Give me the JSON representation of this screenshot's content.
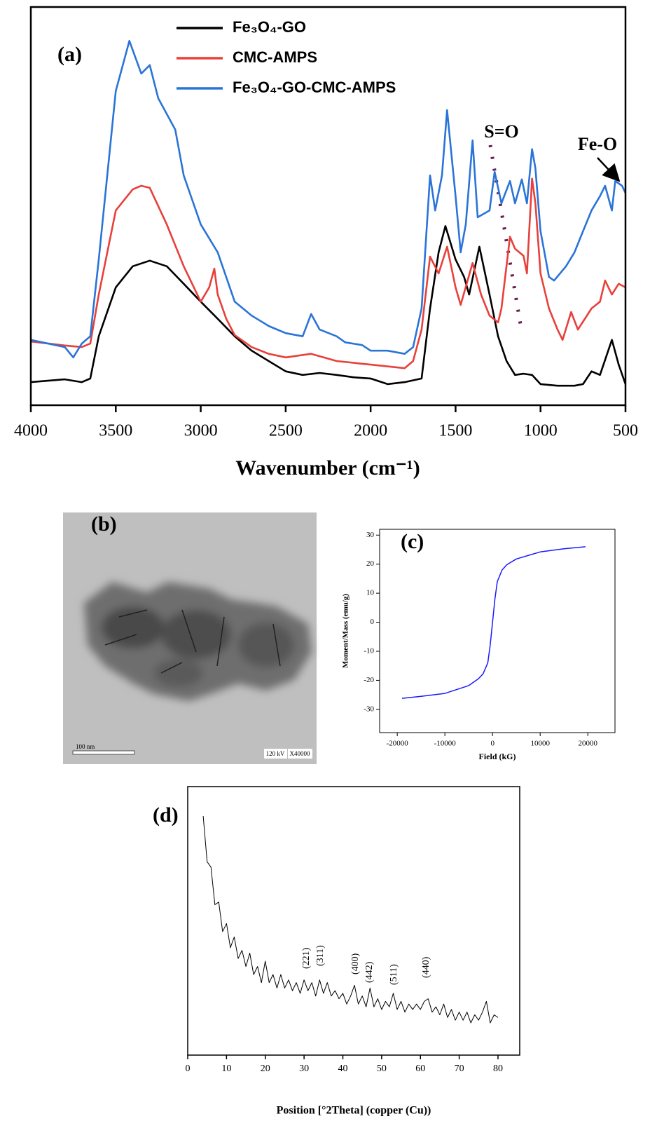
{
  "chart_data": [
    {
      "type": "line",
      "panel_label": "(a)",
      "x_label": "Wavenumber (cm⁻¹)",
      "xlim": [
        4000,
        500
      ],
      "xticks": [
        4000,
        3500,
        3000,
        2500,
        2000,
        1500,
        1000,
        500
      ],
      "ylim": [
        0,
        100
      ],
      "annotations": [
        "S=O",
        "Fe-O"
      ],
      "series": [
        {
          "name": "Fe₃O₄-GO",
          "color": "#000000",
          "x": [
            4000,
            3800,
            3700,
            3650,
            3600,
            3500,
            3400,
            3300,
            3200,
            3100,
            3000,
            2900,
            2800,
            2700,
            2600,
            2500,
            2400,
            2300,
            2200,
            2100,
            2000,
            1900,
            1800,
            1700,
            1650,
            1600,
            1560,
            1500,
            1450,
            1420,
            1360,
            1300,
            1250,
            1200,
            1150,
            1100,
            1050,
            1000,
            900,
            800,
            750,
            700,
            650,
            580,
            540,
            500
          ],
          "values": [
            5.8,
            6.5,
            5.8,
            6.7,
            17.3,
            29.6,
            34.9,
            36.3,
            34.9,
            30.5,
            26,
            21.7,
            17.3,
            13.7,
            11.1,
            8.5,
            7.6,
            8.1,
            7.6,
            7,
            6.7,
            5.3,
            5.8,
            6.7,
            24.3,
            38.4,
            45,
            36.6,
            32.2,
            27.8,
            39.8,
            27.8,
            17.3,
            11.1,
            7.6,
            7.9,
            7.6,
            5.3,
            4.9,
            4.9,
            5.3,
            8.5,
            7.6,
            16.4,
            10.2,
            5.3
          ]
        },
        {
          "name": "CMC-AMPS",
          "color": "#e8403a",
          "x": [
            4000,
            3800,
            3700,
            3650,
            3600,
            3500,
            3400,
            3350,
            3300,
            3200,
            3100,
            3000,
            2950,
            2920,
            2900,
            2850,
            2800,
            2700,
            2600,
            2500,
            2350,
            2200,
            2000,
            1800,
            1750,
            1700,
            1650,
            1600,
            1550,
            1500,
            1470,
            1400,
            1350,
            1300,
            1250,
            1230,
            1180,
            1150,
            1100,
            1080,
            1050,
            1030,
            1000,
            950,
            900,
            870,
            820,
            780,
            700,
            650,
            620,
            580,
            540,
            500
          ],
          "values": [
            16,
            15,
            14.6,
            15.5,
            27.8,
            48.9,
            54.2,
            55.1,
            54.6,
            45.4,
            34.9,
            26,
            29.6,
            34.3,
            27.8,
            21.7,
            17.6,
            14.6,
            12.9,
            12,
            12.9,
            11.1,
            10.2,
            9.3,
            11.1,
            19,
            37.3,
            33.1,
            39.8,
            29.6,
            25.2,
            35.7,
            27.8,
            22.5,
            20.8,
            24.3,
            42.3,
            39.3,
            37.5,
            33.1,
            56.9,
            50.7,
            33.1,
            24.3,
            19,
            16.4,
            23.4,
            19,
            24.3,
            26,
            31.3,
            27.8,
            30.5,
            29.6
          ]
        },
        {
          "name": "Fe₃O₄-GO-CMC-AMPS",
          "color": "#2a74d8",
          "x": [
            4000,
            3800,
            3750,
            3700,
            3650,
            3600,
            3500,
            3420,
            3350,
            3300,
            3250,
            3150,
            3100,
            3000,
            2900,
            2800,
            2700,
            2600,
            2500,
            2400,
            2350,
            2300,
            2200,
            2150,
            2050,
            2000,
            1900,
            1800,
            1750,
            1700,
            1650,
            1620,
            1580,
            1550,
            1500,
            1470,
            1440,
            1400,
            1370,
            1300,
            1270,
            1230,
            1180,
            1150,
            1110,
            1080,
            1050,
            1030,
            1000,
            950,
            920,
            850,
            800,
            750,
            700,
            650,
            620,
            580,
            560,
            520,
            500
          ],
          "values": [
            16.4,
            14.6,
            12,
            15.5,
            17.3,
            36.6,
            78.9,
            91.5,
            83.3,
            85.4,
            77.1,
            69.2,
            57.7,
            45.4,
            38.4,
            26,
            22.5,
            19.9,
            18.1,
            17.3,
            22.9,
            19,
            17.3,
            15.8,
            15.1,
            13.7,
            13.7,
            12.9,
            14.6,
            24.3,
            57.7,
            48.9,
            57.7,
            74.1,
            52.5,
            38.4,
            45.4,
            66.5,
            47.2,
            48.9,
            58.6,
            50.7,
            56.3,
            50.7,
            56.7,
            50.7,
            64.3,
            59.5,
            43.7,
            32.2,
            31.3,
            34.9,
            38.4,
            43.7,
            48.9,
            52.5,
            55.1,
            48.9,
            56.3,
            55.1,
            53.3
          ]
        }
      ]
    },
    {
      "type": "line",
      "panel_label": "(c)",
      "x_label": "Field (kG)",
      "y_label": "Moment/Mass (emu/g)",
      "xlim": [
        -23700,
        25700
      ],
      "xticks": [
        -20000,
        -10000,
        0,
        10000,
        20000
      ],
      "ylim": [
        -38,
        32
      ],
      "yticks": [
        -30,
        -20,
        -10,
        0,
        10,
        20,
        30
      ],
      "color": "#1a1aff",
      "x": [
        -19000,
        -15000,
        -10000,
        -5000,
        -3000,
        -2000,
        -1000,
        -500,
        0,
        500,
        1000,
        2000,
        3000,
        5000,
        10000,
        15000,
        19500
      ],
      "values": [
        -26.2,
        -25.5,
        -24.5,
        -21.8,
        -19.5,
        -17.8,
        -14,
        -8,
        0,
        8,
        14,
        18,
        19.8,
        21.8,
        24.2,
        25.3,
        26
      ]
    },
    {
      "type": "line",
      "panel_label": "(d)",
      "x_label": "Position [°2Theta] (copper (Cu))",
      "xlim": [
        0,
        85.6
      ],
      "xticks": [
        0,
        10,
        20,
        30,
        40,
        50,
        60,
        70,
        80
      ],
      "ylim": [
        0,
        100
      ],
      "color": "#000000",
      "annotations": [
        "(221)",
        "(311)",
        "(400)",
        "(442)",
        "(511)",
        "(440)"
      ],
      "x": [
        4,
        5,
        6,
        7,
        8,
        9,
        10,
        11,
        12,
        13,
        14,
        15,
        16,
        17,
        18,
        19,
        20,
        21,
        22,
        23,
        24,
        25,
        26,
        27,
        28,
        29,
        30,
        31,
        32,
        33,
        34,
        35,
        36,
        37,
        38,
        39,
        40,
        41,
        42,
        43,
        44,
        45,
        46,
        47,
        48,
        49,
        50,
        51,
        52,
        53,
        54,
        55,
        56,
        57,
        58,
        59,
        60,
        61,
        62,
        63,
        64,
        65,
        66,
        67,
        68,
        69,
        70,
        71,
        72,
        73,
        74,
        75,
        76,
        77,
        78,
        79,
        80
      ],
      "values": [
        89,
        72,
        70,
        56,
        57,
        46,
        49,
        40,
        44,
        36,
        39,
        33,
        38,
        30,
        33,
        27,
        35,
        27,
        30,
        25,
        30,
        25,
        28,
        24,
        27,
        23,
        28,
        24,
        27,
        22,
        28,
        23,
        27,
        22,
        24,
        21,
        23,
        19,
        22,
        26,
        19,
        22,
        18,
        25,
        18,
        21,
        17,
        20,
        18,
        23,
        17,
        20,
        16,
        19,
        17,
        19,
        17,
        20,
        21,
        16,
        18,
        15,
        19,
        14,
        17,
        13,
        16,
        13,
        16,
        12,
        15,
        13,
        16,
        20,
        12,
        15,
        14
      ]
    }
  ],
  "tem_image": {
    "panel_label": "(b)",
    "scale_bar": "100 nm",
    "voltage": "120 kV",
    "magnification": "X40000"
  }
}
